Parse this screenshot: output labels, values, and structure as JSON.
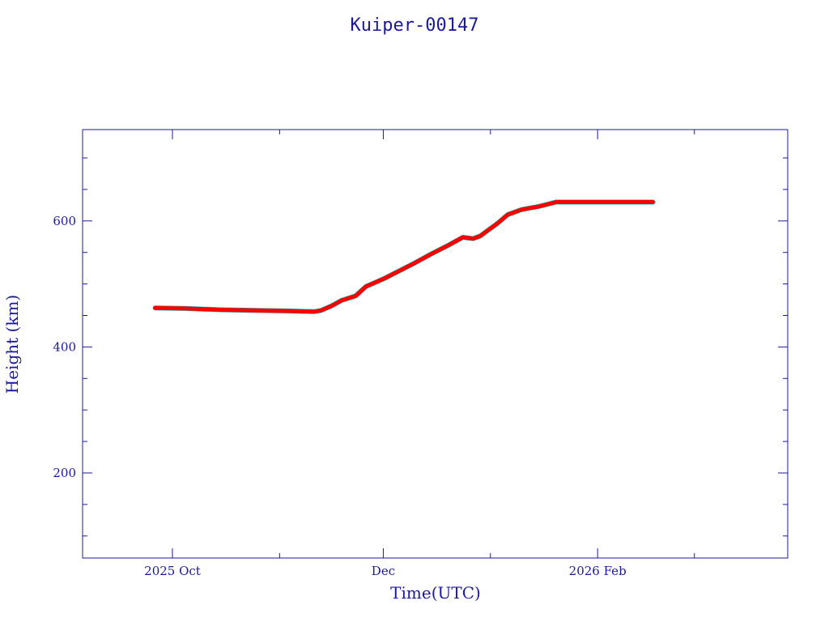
{
  "chart_data": {
    "type": "line",
    "title": "Kuiper-00147",
    "xlabel": "Time(UTC)",
    "ylabel": "Height (km)",
    "x_tick_labels": [
      {
        "date": "2025-10-01",
        "label": "2025 Oct"
      },
      {
        "date": "2025-12-01",
        "label": "Dec"
      },
      {
        "date": "2026-02-01",
        "label": "2026 Feb"
      }
    ],
    "y_tick_labels": [
      {
        "value": 200,
        "label": "200"
      },
      {
        "value": 400,
        "label": "400"
      },
      {
        "value": 600,
        "label": "600"
      }
    ],
    "xlim": [
      "2025-09-05",
      "2026-03-28"
    ],
    "ylim": [
      65,
      745
    ],
    "grid": false,
    "colors": {
      "axis": "#1a1a9c",
      "series": "#ff0000",
      "accent": "#00c0c0"
    },
    "series": [
      {
        "x": [
          "2025-09-26",
          "2025-10-05",
          "2025-10-15",
          "2025-10-25",
          "2025-11-04",
          "2025-11-11",
          "2025-11-13",
          "2025-11-16",
          "2025-11-19",
          "2025-11-23",
          "2025-11-26",
          "2025-12-01",
          "2025-12-05",
          "2025-12-10",
          "2025-12-15",
          "2025-12-20",
          "2025-12-24",
          "2025-12-27",
          "2025-12-29",
          "2026-01-03",
          "2026-01-06",
          "2026-01-10",
          "2026-01-12",
          "2026-01-15",
          "2026-01-20",
          "2026-01-25",
          "2026-02-05",
          "2026-02-17"
        ],
        "y": [
          462,
          461,
          459,
          458,
          457,
          456,
          458,
          465,
          474,
          481,
          496,
          508,
          519,
          533,
          548,
          562,
          574,
          572,
          576,
          596,
          610,
          618,
          620,
          623,
          630,
          630,
          630,
          630
        ]
      }
    ]
  }
}
